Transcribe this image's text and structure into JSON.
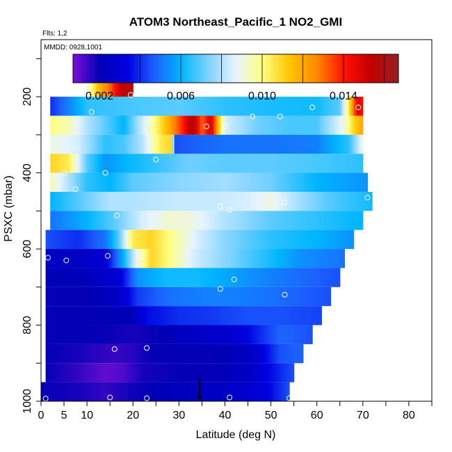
{
  "header": {
    "title": "ATOM3 Northeast_Pacific_1 NO2_GMI",
    "flights": "Flts: 1,2",
    "dates": "MMDD: 0928,1001"
  },
  "colors": {
    "ramp": [
      "#7e0fd8",
      "#0000b5",
      "#0000e2",
      "#1d5fff",
      "#00b6ff",
      "#7fd3ff",
      "#e7f4ff",
      "#ffff80",
      "#ffc400",
      "#ff8800",
      "#ff1000",
      "#c40000",
      "#962020"
    ],
    "points": "#ffffff",
    "marker": "#000000"
  },
  "chart_data": {
    "type": "heatmap",
    "title": "ATOM3 Northeast_Pacific_1 NO2_GMI",
    "xlabel": "Latitude (deg N)",
    "ylabel": "PSXC (mbar)",
    "xlim": [
      0,
      85
    ],
    "ylim": [
      1000,
      50
    ],
    "x_ticks": [
      "0",
      "5",
      "10",
      "20",
      "30",
      "40",
      "50",
      "60",
      "70",
      "80"
    ],
    "x_tick_values": [
      0,
      5,
      10,
      20,
      30,
      40,
      50,
      60,
      70,
      80
    ],
    "y_ticks": [
      "200",
      "400",
      "600",
      "800",
      "1000"
    ],
    "y_tick_values": [
      200,
      400,
      600,
      800,
      1000
    ],
    "colorbar": {
      "min": 0.0007,
      "max": 0.0167,
      "tick_labels": [
        "0.002",
        "0.006",
        "0.010",
        "0.014"
      ],
      "tick_values": [
        0.002,
        0.006,
        0.01,
        0.014
      ],
      "placement": "top"
    },
    "rows": [
      {
        "p_top": 150,
        "p_bot": 200,
        "lat_start": 10,
        "lat_end": 20,
        "nodes": [
          [
            10,
            0.009
          ],
          [
            11,
            0.01
          ],
          [
            13,
            0.012
          ],
          [
            15,
            0.013
          ],
          [
            17,
            0.015
          ],
          [
            19,
            0.016
          ],
          [
            20,
            0.015
          ]
        ]
      },
      {
        "p_top": 200,
        "p_bot": 250,
        "lat_start": 2,
        "lat_end": 70,
        "nodes": [
          [
            2,
            0.004
          ],
          [
            10,
            0.0065
          ],
          [
            20,
            0.0068
          ],
          [
            30,
            0.007
          ],
          [
            40,
            0.0065
          ],
          [
            50,
            0.0063
          ],
          [
            60,
            0.0062
          ],
          [
            65,
            0.007
          ],
          [
            67,
            0.0105
          ],
          [
            68,
            0.013
          ],
          [
            69,
            0.015
          ],
          [
            70,
            0.014
          ]
        ]
      },
      {
        "p_top": 250,
        "p_bot": 300,
        "lat_start": 2,
        "lat_end": 70,
        "nodes": [
          [
            2,
            0.01
          ],
          [
            6,
            0.0095
          ],
          [
            10,
            0.008
          ],
          [
            18,
            0.006
          ],
          [
            24,
            0.0095
          ],
          [
            28,
            0.012
          ],
          [
            31,
            0.014
          ],
          [
            33,
            0.016
          ],
          [
            35,
            0.013
          ],
          [
            37,
            0.015
          ],
          [
            40,
            0.0085
          ],
          [
            47,
            0.0072
          ],
          [
            54,
            0.0068
          ],
          [
            60,
            0.0068
          ],
          [
            66,
            0.009
          ],
          [
            68,
            0.011
          ],
          [
            70,
            0.012
          ]
        ]
      },
      {
        "p_top": 300,
        "p_bot": 350,
        "lat_start": 2,
        "lat_end": 70,
        "nodes": [
          [
            2,
            0.009
          ],
          [
            8,
            0.0085
          ],
          [
            14,
            0.0065
          ],
          [
            18,
            0.0068
          ],
          [
            22,
            0.008
          ],
          [
            26,
            0.0105
          ],
          [
            28.5,
            0.011
          ],
          [
            29,
            0.0045
          ],
          [
            40,
            0.005
          ],
          [
            50,
            0.005
          ],
          [
            60,
            0.0052
          ],
          [
            67,
            0.0065
          ],
          [
            70,
            0.009
          ]
        ]
      },
      {
        "p_top": 350,
        "p_bot": 400,
        "lat_start": 2,
        "lat_end": 70,
        "nodes": [
          [
            2,
            0.011
          ],
          [
            6,
            0.0105
          ],
          [
            10,
            0.007
          ],
          [
            14,
            0.0055
          ],
          [
            18,
            0.006
          ],
          [
            24,
            0.0065
          ],
          [
            32,
            0.0072
          ],
          [
            40,
            0.007
          ],
          [
            50,
            0.007
          ],
          [
            60,
            0.0068
          ],
          [
            70,
            0.0065
          ]
        ]
      },
      {
        "p_top": 400,
        "p_bot": 450,
        "lat_start": 2,
        "lat_end": 71,
        "nodes": [
          [
            2,
            0.0095
          ],
          [
            10,
            0.0065
          ],
          [
            15,
            0.006
          ],
          [
            20,
            0.007
          ],
          [
            30,
            0.0075
          ],
          [
            40,
            0.0078
          ],
          [
            50,
            0.0072
          ],
          [
            60,
            0.006
          ],
          [
            71,
            0.0055
          ]
        ]
      },
      {
        "p_top": 450,
        "p_bot": 500,
        "lat_start": 2,
        "lat_end": 72,
        "nodes": [
          [
            2,
            0.006
          ],
          [
            10,
            0.0072
          ],
          [
            15,
            0.008
          ],
          [
            20,
            0.008
          ],
          [
            30,
            0.0083
          ],
          [
            38,
            0.0083
          ],
          [
            45,
            0.0085
          ],
          [
            50,
            0.009
          ],
          [
            55,
            0.008
          ],
          [
            62,
            0.007
          ],
          [
            72,
            0.0062
          ]
        ]
      },
      {
        "p_top": 500,
        "p_bot": 550,
        "lat_start": 2,
        "lat_end": 70,
        "nodes": [
          [
            2,
            0.005
          ],
          [
            10,
            0.006
          ],
          [
            16,
            0.007
          ],
          [
            22,
            0.0085
          ],
          [
            28,
            0.0092
          ],
          [
            33,
            0.009
          ],
          [
            40,
            0.008
          ],
          [
            50,
            0.007
          ],
          [
            60,
            0.0065
          ],
          [
            70,
            0.006
          ]
        ]
      },
      {
        "p_top": 550,
        "p_bot": 600,
        "lat_start": 1,
        "lat_end": 68,
        "nodes": [
          [
            1,
            0.0045
          ],
          [
            8,
            0.004
          ],
          [
            14,
            0.005
          ],
          [
            17,
            0.007
          ],
          [
            20,
            0.0105
          ],
          [
            24,
            0.011
          ],
          [
            28,
            0.01
          ],
          [
            34,
            0.0085
          ],
          [
            40,
            0.0075
          ],
          [
            50,
            0.0065
          ],
          [
            60,
            0.006
          ],
          [
            68,
            0.0055
          ]
        ]
      },
      {
        "p_top": 600,
        "p_bot": 650,
        "lat_start": 1,
        "lat_end": 66,
        "nodes": [
          [
            1,
            0.0025
          ],
          [
            8,
            0.0025
          ],
          [
            14,
            0.003
          ],
          [
            18,
            0.006
          ],
          [
            21,
            0.009
          ],
          [
            24,
            0.011
          ],
          [
            28,
            0.01
          ],
          [
            33,
            0.0085
          ],
          [
            40,
            0.0075
          ],
          [
            48,
            0.0065
          ],
          [
            56,
            0.0055
          ],
          [
            66,
            0.005
          ]
        ]
      },
      {
        "p_top": 650,
        "p_bot": 700,
        "lat_start": 1,
        "lat_end": 65,
        "nodes": [
          [
            1,
            0.002
          ],
          [
            10,
            0.0022
          ],
          [
            17,
            0.003
          ],
          [
            21,
            0.0055
          ],
          [
            27,
            0.0062
          ],
          [
            34,
            0.0062
          ],
          [
            42,
            0.0057
          ],
          [
            50,
            0.0052
          ],
          [
            58,
            0.0048
          ],
          [
            65,
            0.0045
          ]
        ]
      },
      {
        "p_top": 700,
        "p_bot": 750,
        "lat_start": 1,
        "lat_end": 63,
        "nodes": [
          [
            1,
            0.002
          ],
          [
            10,
            0.002
          ],
          [
            17,
            0.0025
          ],
          [
            21,
            0.0042
          ],
          [
            28,
            0.005
          ],
          [
            35,
            0.0052
          ],
          [
            42,
            0.0052
          ],
          [
            50,
            0.005
          ],
          [
            57,
            0.0047
          ],
          [
            63,
            0.0045
          ]
        ]
      },
      {
        "p_top": 750,
        "p_bot": 800,
        "lat_start": 1,
        "lat_end": 61,
        "nodes": [
          [
            1,
            0.002
          ],
          [
            12,
            0.002
          ],
          [
            20,
            0.0022
          ],
          [
            23,
            0.0035
          ],
          [
            30,
            0.004
          ],
          [
            38,
            0.0042
          ],
          [
            45,
            0.0045
          ],
          [
            52,
            0.0045
          ],
          [
            61,
            0.0043
          ]
        ]
      },
      {
        "p_top": 800,
        "p_bot": 850,
        "lat_start": 1,
        "lat_end": 59,
        "nodes": [
          [
            1,
            0.002
          ],
          [
            12,
            0.002
          ],
          [
            20,
            0.0018
          ],
          [
            26,
            0.002
          ],
          [
            33,
            0.0025
          ],
          [
            42,
            0.0028
          ],
          [
            48,
            0.004
          ],
          [
            52,
            0.0048
          ],
          [
            59,
            0.0045
          ]
        ]
      },
      {
        "p_top": 850,
        "p_bot": 900,
        "lat_start": 1,
        "lat_end": 57,
        "nodes": [
          [
            1,
            0.002
          ],
          [
            8,
            0.0018
          ],
          [
            12,
            0.0016
          ],
          [
            16,
            0.0015
          ],
          [
            20,
            0.0016
          ],
          [
            24,
            0.002
          ],
          [
            30,
            0.002
          ],
          [
            38,
            0.002
          ],
          [
            46,
            0.0025
          ],
          [
            52,
            0.0045
          ],
          [
            57,
            0.0048
          ]
        ]
      },
      {
        "p_top": 900,
        "p_bot": 950,
        "lat_start": 1,
        "lat_end": 55,
        "nodes": [
          [
            1,
            0.002
          ],
          [
            8,
            0.0015
          ],
          [
            14,
            0.001
          ],
          [
            18,
            0.0012
          ],
          [
            22,
            0.0018
          ],
          [
            30,
            0.002
          ],
          [
            38,
            0.002
          ],
          [
            46,
            0.0025
          ],
          [
            50,
            0.0035
          ],
          [
            55,
            0.0045
          ]
        ]
      },
      {
        "p_top": 950,
        "p_bot": 1000,
        "lat_start": 0,
        "lat_end": 54,
        "nodes": [
          [
            0,
            0.002
          ],
          [
            8,
            0.0018
          ],
          [
            14,
            0.0015
          ],
          [
            22,
            0.002
          ],
          [
            30,
            0.0022
          ],
          [
            40,
            0.0025
          ],
          [
            48,
            0.003
          ],
          [
            54,
            0.0045
          ]
        ]
      }
    ],
    "sample_points": [
      [
        19.5,
        195
      ],
      [
        11,
        240
      ],
      [
        24,
        262
      ],
      [
        36,
        278
      ],
      [
        40,
        278
      ],
      [
        46,
        252
      ],
      [
        52,
        252
      ],
      [
        59,
        228
      ],
      [
        69,
        228
      ],
      [
        25,
        365
      ],
      [
        2.5,
        408
      ],
      [
        5,
        400
      ],
      [
        14,
        400
      ],
      [
        7.5,
        443
      ],
      [
        71,
        465
      ],
      [
        16.5,
        512
      ],
      [
        39,
        488
      ],
      [
        41,
        497
      ],
      [
        53,
        478
      ],
      [
        1.5,
        623
      ],
      [
        5.5,
        630
      ],
      [
        14.5,
        618
      ],
      [
        22,
        620
      ],
      [
        39,
        705
      ],
      [
        42,
        680
      ],
      [
        53,
        720
      ],
      [
        16,
        863
      ],
      [
        23,
        860
      ],
      [
        1,
        993
      ],
      [
        15,
        990
      ],
      [
        23,
        992
      ],
      [
        41,
        990
      ],
      [
        54,
        992
      ]
    ],
    "marker_lat": 34.5
  },
  "axes": {
    "xlabel": "Latitude (deg N)",
    "ylabel": "PSXC (mbar)"
  }
}
